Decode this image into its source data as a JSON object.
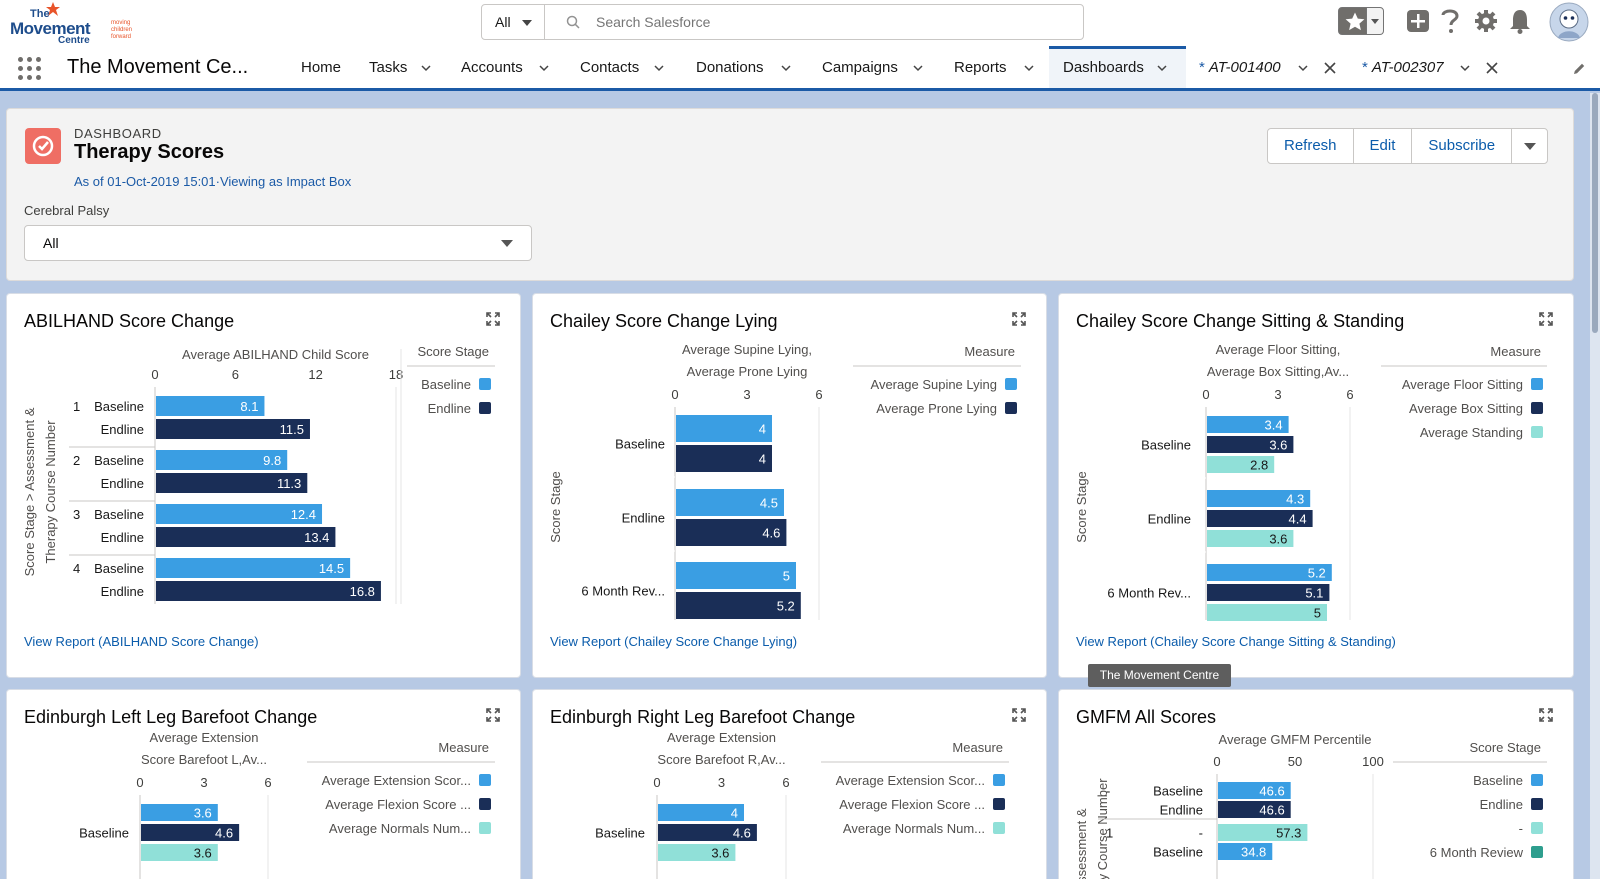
{
  "logo": {
    "the": "The",
    "movement": "Movement",
    "centre": "Centre",
    "tagline": "moving children forward"
  },
  "search": {
    "scope": "All",
    "placeholder": "Search Salesforce"
  },
  "nav": {
    "app_name": "The Movement Ce...",
    "items": [
      "Home",
      "Tasks",
      "Accounts",
      "Contacts",
      "Donations",
      "Campaigns",
      "Reports",
      "Dashboards"
    ],
    "subtabs": [
      "AT-001400",
      "AT-002307"
    ],
    "subtab_marker": "*"
  },
  "dashboard": {
    "kicker": "DASHBOARD",
    "title": "Therapy Scores",
    "as_of": "As of 01-Oct-2019 15:01·Viewing as Impact Box",
    "buttons": {
      "refresh": "Refresh",
      "edit": "Edit",
      "subscribe": "Subscribe"
    },
    "filter_label": "Cerebral Palsy",
    "filter_value": "All"
  },
  "tooltip": "The Movement Centre",
  "colors": {
    "series1": "#3a9ee3",
    "series2": "#1a2e57",
    "series3": "#90e0d8",
    "series4": "#2e9e8e",
    "link": "#0b5cab",
    "nav_active": "#1b5aa6"
  },
  "cards": [
    {
      "title": "ABILHAND Score Change",
      "link": "View Report (ABILHAND Score Change)"
    },
    {
      "title": "Chailey Score Change Lying",
      "link": "View Report (Chailey Score Change Lying)"
    },
    {
      "title": "Chailey Score Change Sitting & Standing",
      "link": "View Report (Chailey Score Change Sitting & Standing)"
    },
    {
      "title": "Edinburgh Left Leg Barefoot Change",
      "link": ""
    },
    {
      "title": "Edinburgh Right Leg Barefoot Change",
      "link": ""
    },
    {
      "title": "GMFM All Scores",
      "link": ""
    }
  ],
  "chart_data": [
    {
      "type": "bar",
      "title": "ABILHAND Score Change",
      "xlabel_lines": [
        "Average ABILHAND Child Score"
      ],
      "ylabel": "Score Stage > Assessment & Therapy Course Number",
      "ticks": [
        0,
        6,
        12,
        18
      ],
      "xlim": [
        0,
        18
      ],
      "legend_title": "Score Stage",
      "legend": [
        {
          "name": "Baseline",
          "color": "#3a9ee3"
        },
        {
          "name": "Endline",
          "color": "#1a2e57"
        }
      ],
      "groups": [
        {
          "label": "1",
          "bars": [
            {
              "cat": "Baseline",
              "value": 8.1,
              "label": "8.1",
              "series": 0
            },
            {
              "cat": "Endline",
              "value": 11.5,
              "label": "11.5",
              "series": 1
            }
          ]
        },
        {
          "label": "2",
          "bars": [
            {
              "cat": "Baseline",
              "value": 9.8,
              "label": "9.8",
              "series": 0
            },
            {
              "cat": "Endline",
              "value": 11.3,
              "label": "11.3",
              "series": 1
            }
          ]
        },
        {
          "label": "3",
          "bars": [
            {
              "cat": "Baseline",
              "value": 12.4,
              "label": "12.4",
              "series": 0
            },
            {
              "cat": "Endline",
              "value": 13.4,
              "label": "13.4",
              "series": 1
            }
          ]
        },
        {
          "label": "4",
          "bars": [
            {
              "cat": "Baseline",
              "value": 14.5,
              "label": "14.5",
              "series": 0
            },
            {
              "cat": "Endline",
              "value": 16.8,
              "label": "16.8",
              "series": 1
            }
          ]
        }
      ]
    },
    {
      "type": "bar",
      "title": "Chailey Score Change Lying",
      "xlabel_lines": [
        "Average Supine Lying,",
        "Average Prone Lying"
      ],
      "ylabel": "Score Stage",
      "ticks": [
        0,
        3,
        6
      ],
      "xlim": [
        0,
        6
      ],
      "legend_title": "Measure",
      "legend": [
        {
          "name": "Average Supine Lying",
          "color": "#3a9ee3"
        },
        {
          "name": "Average Prone Lying",
          "color": "#1a2e57"
        }
      ],
      "groups": [
        {
          "label": "Baseline",
          "bars": [
            {
              "value": 4,
              "label": "4",
              "series": 0
            },
            {
              "value": 4,
              "label": "4",
              "series": 1
            }
          ]
        },
        {
          "label": "Endline",
          "bars": [
            {
              "value": 4.5,
              "label": "4.5",
              "series": 0
            },
            {
              "value": 4.6,
              "label": "4.6",
              "series": 1
            }
          ]
        },
        {
          "label": "6 Month Rev...",
          "bars": [
            {
              "value": 5,
              "label": "5",
              "series": 0
            },
            {
              "value": 5.2,
              "label": "5.2",
              "series": 1
            }
          ]
        }
      ]
    },
    {
      "type": "bar",
      "title": "Chailey Score Change Sitting & Standing",
      "xlabel_lines": [
        "Average Floor Sitting,",
        "Average Box Sitting,Av..."
      ],
      "ylabel": "Score Stage",
      "ticks": [
        0,
        3,
        6
      ],
      "xlim": [
        0,
        6
      ],
      "legend_title": "Measure",
      "legend": [
        {
          "name": "Average Floor Sitting",
          "color": "#3a9ee3"
        },
        {
          "name": "Average Box Sitting",
          "color": "#1a2e57"
        },
        {
          "name": "Average Standing",
          "color": "#90e0d8"
        }
      ],
      "groups": [
        {
          "label": "Baseline",
          "bars": [
            {
              "value": 3.4,
              "label": "3.4",
              "series": 0
            },
            {
              "value": 3.6,
              "label": "3.6",
              "series": 1
            },
            {
              "value": 2.8,
              "label": "2.8",
              "series": 2
            }
          ]
        },
        {
          "label": "Endline",
          "bars": [
            {
              "value": 4.3,
              "label": "4.3",
              "series": 0
            },
            {
              "value": 4.4,
              "label": "4.4",
              "series": 1
            },
            {
              "value": 3.6,
              "label": "3.6",
              "series": 2
            }
          ]
        },
        {
          "label": "6 Month Rev...",
          "bars": [
            {
              "value": 5.2,
              "label": "5.2",
              "series": 0
            },
            {
              "value": 5.1,
              "label": "5.1",
              "series": 1
            },
            {
              "value": 5,
              "label": "5",
              "series": 2
            }
          ]
        }
      ]
    },
    {
      "type": "bar",
      "title": "Edinburgh Left Leg Barefoot Change",
      "xlabel_lines": [
        "Average Extension",
        "Score Barefoot L,Av..."
      ],
      "ticks": [
        0,
        3,
        6
      ],
      "xlim": [
        0,
        6
      ],
      "legend_title": "Measure",
      "legend": [
        {
          "name": "Average Extension Scor...",
          "color": "#3a9ee3"
        },
        {
          "name": "Average Flexion Score ...",
          "color": "#1a2e57"
        },
        {
          "name": "Average Normals Num...",
          "color": "#90e0d8"
        }
      ],
      "groups": [
        {
          "label": "Baseline",
          "bars": [
            {
              "value": 3.6,
              "label": "3.6",
              "series": 0
            },
            {
              "value": 4.6,
              "label": "4.6",
              "series": 1
            },
            {
              "value": 3.6,
              "label": "3.6",
              "series": 2
            }
          ]
        }
      ]
    },
    {
      "type": "bar",
      "title": "Edinburgh Right Leg Barefoot Change",
      "xlabel_lines": [
        "Average Extension",
        "Score Barefoot R,Av..."
      ],
      "ticks": [
        0,
        3,
        6
      ],
      "xlim": [
        0,
        6
      ],
      "legend_title": "Measure",
      "legend": [
        {
          "name": "Average Extension Scor...",
          "color": "#3a9ee3"
        },
        {
          "name": "Average Flexion Score ...",
          "color": "#1a2e57"
        },
        {
          "name": "Average Normals Num...",
          "color": "#90e0d8"
        }
      ],
      "groups": [
        {
          "label": "Baseline",
          "bars": [
            {
              "value": 4,
              "label": "4",
              "series": 0
            },
            {
              "value": 4.6,
              "label": "4.6",
              "series": 1
            },
            {
              "value": 3.6,
              "label": "3.6",
              "series": 2
            }
          ]
        }
      ]
    },
    {
      "type": "bar",
      "title": "GMFM All Scores",
      "xlabel_lines": [
        "Average GMFM Percentile"
      ],
      "ylabel": "Assessment & Therapy Course Number",
      "ticks": [
        0,
        50,
        100
      ],
      "xlim": [
        0,
        100
      ],
      "legend_title": "Score Stage",
      "legend": [
        {
          "name": "Baseline",
          "color": "#3a9ee3"
        },
        {
          "name": "Endline",
          "color": "#1a2e57"
        },
        {
          "name": "-",
          "color": "#90e0d8"
        },
        {
          "name": "6 Month Review",
          "color": "#2e9e8e"
        }
      ],
      "groups": [
        {
          "label": "-",
          "bars": [
            {
              "cat": "Baseline",
              "value": 46.6,
              "label": "46.6",
              "series": 0
            },
            {
              "cat": "Endline",
              "value": 46.6,
              "label": "46.6",
              "series": 1
            }
          ]
        },
        {
          "label": "1",
          "bars": [
            {
              "cat": "-",
              "value": 57.3,
              "label": "57.3",
              "series": 2
            },
            {
              "cat": "Baseline",
              "value": 34.8,
              "label": "34.8",
              "series": 0
            }
          ]
        }
      ]
    }
  ]
}
